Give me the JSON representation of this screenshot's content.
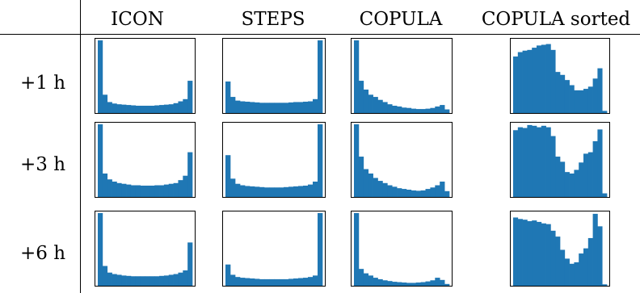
{
  "columns": [
    "ICON",
    "STEPS",
    "COPULA",
    "COPULA sorted"
  ],
  "rows": [
    "+1 h",
    "+3 h",
    "+6 h"
  ],
  "colors": {
    "bar": "#1f77b4",
    "frame": "#000000"
  },
  "chart_data": {
    "type": "bar",
    "layout": "grid of histograms",
    "grid": false,
    "panels": [
      {
        "row": "+1 h",
        "column": "ICON",
        "values": [
          1.0,
          0.26,
          0.16,
          0.14,
          0.13,
          0.125,
          0.12,
          0.115,
          0.11,
          0.11,
          0.11,
          0.11,
          0.115,
          0.12,
          0.125,
          0.13,
          0.145,
          0.17,
          0.2,
          0.45
        ]
      },
      {
        "row": "+1 h",
        "column": "STEPS",
        "values": [
          0.44,
          0.23,
          0.18,
          0.17,
          0.165,
          0.16,
          0.155,
          0.15,
          0.15,
          0.15,
          0.15,
          0.15,
          0.15,
          0.155,
          0.16,
          0.16,
          0.165,
          0.17,
          0.2,
          1.0
        ]
      },
      {
        "row": "+1 h",
        "column": "COPULA",
        "values": [
          1.0,
          0.45,
          0.33,
          0.26,
          0.23,
          0.19,
          0.16,
          0.13,
          0.11,
          0.1,
          0.085,
          0.08,
          0.07,
          0.065,
          0.065,
          0.07,
          0.08,
          0.1,
          0.12,
          0.06
        ]
      },
      {
        "row": "+1 h",
        "column": "COPULA sorted",
        "values": [
          0.78,
          0.84,
          0.86,
          0.87,
          0.9,
          0.93,
          0.94,
          0.95,
          0.87,
          0.57,
          0.53,
          0.46,
          0.39,
          0.32,
          0.32,
          0.34,
          0.37,
          0.48,
          0.62,
          0.04
        ]
      },
      {
        "row": "+3 h",
        "column": "ICON",
        "values": [
          1.0,
          0.33,
          0.25,
          0.22,
          0.2,
          0.19,
          0.18,
          0.17,
          0.17,
          0.165,
          0.165,
          0.165,
          0.17,
          0.17,
          0.18,
          0.19,
          0.2,
          0.24,
          0.3,
          0.62
        ]
      },
      {
        "row": "+3 h",
        "column": "STEPS",
        "values": [
          0.58,
          0.26,
          0.19,
          0.17,
          0.16,
          0.155,
          0.15,
          0.145,
          0.14,
          0.14,
          0.14,
          0.14,
          0.145,
          0.15,
          0.155,
          0.16,
          0.165,
          0.18,
          0.22,
          1.0
        ]
      },
      {
        "row": "+3 h",
        "column": "COPULA",
        "values": [
          1.0,
          0.56,
          0.39,
          0.33,
          0.27,
          0.23,
          0.2,
          0.17,
          0.15,
          0.13,
          0.12,
          0.11,
          0.1,
          0.095,
          0.1,
          0.12,
          0.14,
          0.17,
          0.22,
          0.09
        ]
      },
      {
        "row": "+3 h",
        "column": "COPULA sorted",
        "values": [
          0.92,
          0.96,
          0.95,
          0.99,
          0.98,
          0.96,
          0.98,
          0.96,
          0.84,
          0.56,
          0.49,
          0.35,
          0.33,
          0.38,
          0.48,
          0.6,
          0.62,
          0.77,
          0.93,
          0.06
        ]
      },
      {
        "row": "+6 h",
        "column": "ICON",
        "values": [
          1.0,
          0.28,
          0.19,
          0.17,
          0.16,
          0.15,
          0.145,
          0.14,
          0.14,
          0.14,
          0.14,
          0.14,
          0.14,
          0.145,
          0.15,
          0.16,
          0.17,
          0.19,
          0.22,
          0.6
        ]
      },
      {
        "row": "+6 h",
        "column": "STEPS",
        "values": [
          0.3,
          0.16,
          0.13,
          0.12,
          0.115,
          0.11,
          0.105,
          0.1,
          0.1,
          0.1,
          0.1,
          0.1,
          0.1,
          0.105,
          0.11,
          0.115,
          0.12,
          0.13,
          0.15,
          1.0
        ]
      },
      {
        "row": "+6 h",
        "column": "COPULA",
        "values": [
          1.0,
          0.24,
          0.18,
          0.15,
          0.12,
          0.1,
          0.085,
          0.075,
          0.065,
          0.06,
          0.055,
          0.05,
          0.05,
          0.055,
          0.06,
          0.07,
          0.085,
          0.12,
          0.09,
          0.035
        ]
      },
      {
        "row": "+6 h",
        "column": "COPULA sorted",
        "values": [
          0.94,
          0.92,
          0.91,
          0.89,
          0.9,
          0.88,
          0.86,
          0.85,
          0.76,
          0.68,
          0.5,
          0.38,
          0.31,
          0.33,
          0.45,
          0.52,
          0.66,
          0.99,
          0.82,
          0.03
        ]
      }
    ]
  }
}
